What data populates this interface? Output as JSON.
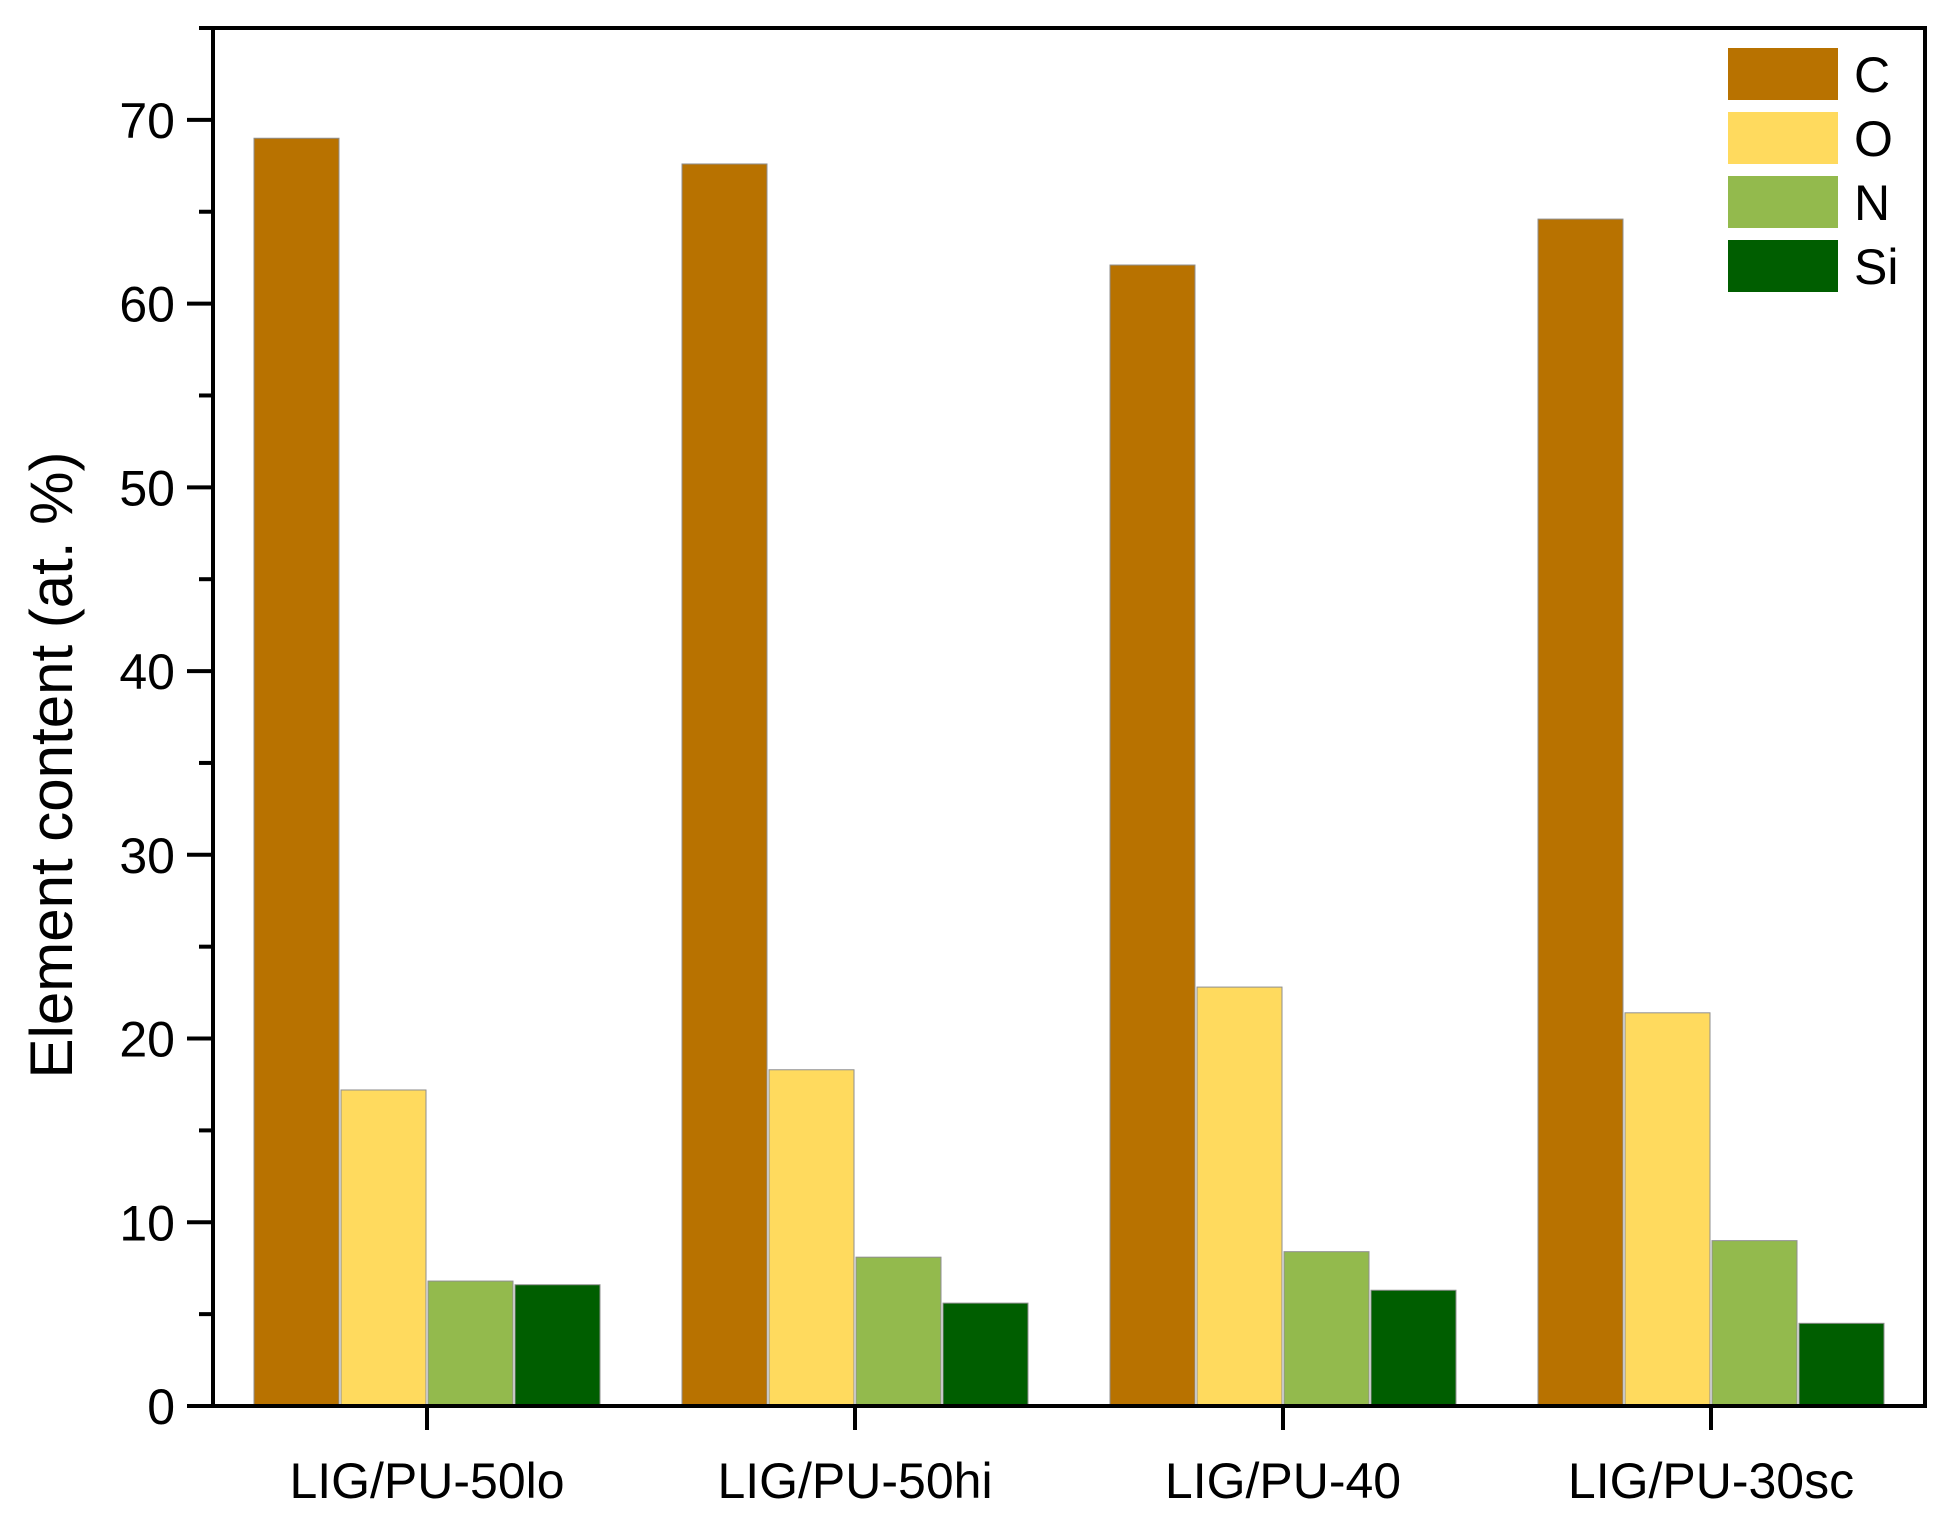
{
  "chart_data": {
    "type": "bar",
    "title": "",
    "xlabel": "",
    "ylabel": "Element content (at. %)",
    "ylim": [
      0,
      75
    ],
    "yticks": [
      0,
      10,
      20,
      30,
      40,
      50,
      60,
      70
    ],
    "grid": false,
    "legend_position": "top-right",
    "categories": [
      "LIG/PU-50lo",
      "LIG/PU-50hi",
      "LIG/PU-40",
      "LIG/PU-30sc"
    ],
    "series": [
      {
        "name": "C",
        "color": "#B87200",
        "values": [
          69.0,
          67.6,
          62.1,
          64.6
        ]
      },
      {
        "name": "O",
        "color": "#FFDA5E",
        "values": [
          17.2,
          18.3,
          22.8,
          21.4
        ]
      },
      {
        "name": "N",
        "color": "#93BA4D",
        "values": [
          6.8,
          8.1,
          8.4,
          9.0
        ]
      },
      {
        "name": "Si",
        "color": "#005E00",
        "values": [
          6.6,
          5.6,
          6.3,
          4.5
        ]
      }
    ]
  }
}
